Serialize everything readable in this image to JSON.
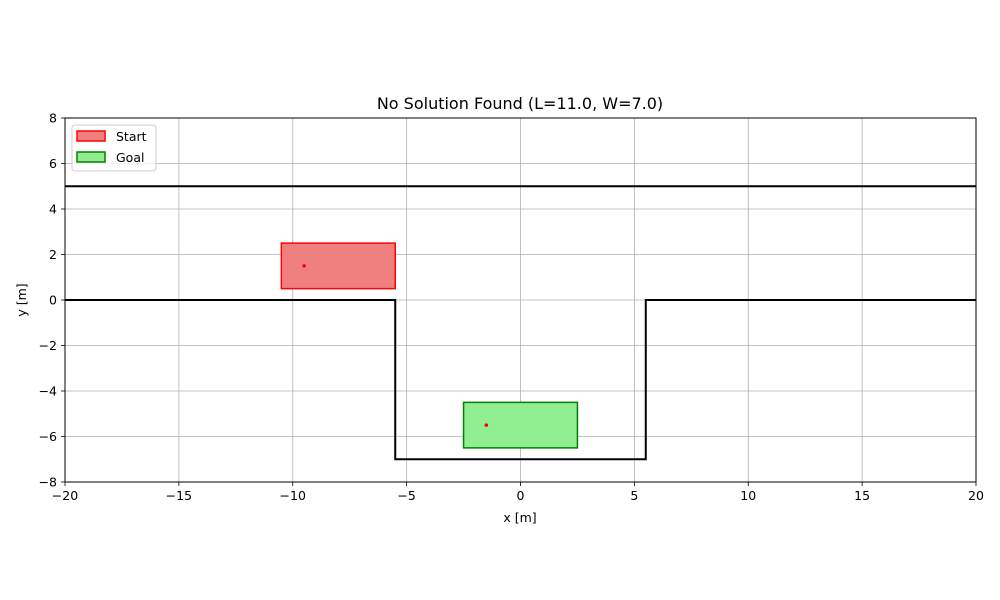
{
  "chart_data": {
    "type": "scatter",
    "title": "No Solution Found (L=11.0, W=7.0)",
    "xlabel": "x [m]",
    "ylabel": "y [m]",
    "xlim": [
      -20,
      20
    ],
    "ylim": [
      -8,
      8
    ],
    "xticks": [
      -20,
      -15,
      -10,
      -5,
      0,
      5,
      10,
      15,
      20
    ],
    "yticks": [
      -8,
      -6,
      -4,
      -2,
      0,
      2,
      4,
      6,
      8
    ],
    "xtick_labels": [
      "−20",
      "−15",
      "−10",
      "−5",
      "0",
      "5",
      "10",
      "15",
      "20"
    ],
    "ytick_labels": [
      "−8",
      "−6",
      "−4",
      "−2",
      "0",
      "2",
      "4",
      "6",
      "8"
    ],
    "grid": true,
    "legend_position": "top-left",
    "boundaries": [
      {
        "points": [
          [
            -20,
            5
          ],
          [
            20,
            5
          ]
        ],
        "color": "#000000"
      },
      {
        "points": [
          [
            -20,
            0
          ],
          [
            -5.5,
            0
          ],
          [
            -5.5,
            -7
          ],
          [
            5.5,
            -7
          ],
          [
            5.5,
            0
          ],
          [
            20,
            0
          ]
        ],
        "color": "#000000"
      }
    ],
    "series": [
      {
        "name": "Start",
        "rect": {
          "x": [
            -10.5,
            -5.5
          ],
          "y": [
            0.5,
            2.5
          ]
        },
        "center": [
          -9.5,
          1.5
        ],
        "fill": "#f08080",
        "edge": "#ff0000"
      },
      {
        "name": "Goal",
        "rect": {
          "x": [
            -2.5,
            2.5
          ],
          "y": [
            -6.5,
            -4.5
          ]
        },
        "center": [
          -1.5,
          -5.5
        ],
        "fill": "#90ee90",
        "edge": "#008000"
      }
    ]
  }
}
